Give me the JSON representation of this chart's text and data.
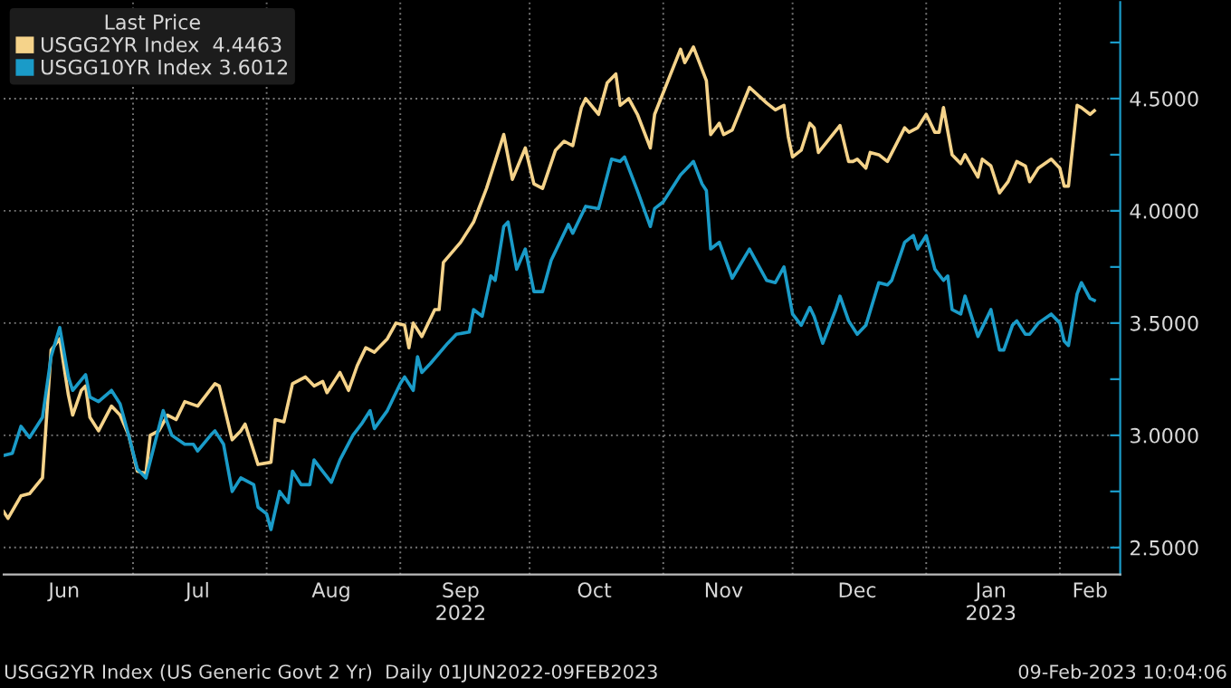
{
  "chart_data": {
    "type": "line",
    "legend_title": "Last Price",
    "legend": "top left",
    "grid": true,
    "xlim": [
      "2022-06-01",
      "2023-02-15"
    ],
    "xticks": [
      {
        "value": "2022-06-15",
        "label": "Jun"
      },
      {
        "value": "2022-07-01",
        "label": null
      },
      {
        "value": "2022-07-16",
        "label": "Jul"
      },
      {
        "value": "2022-08-01",
        "label": null
      },
      {
        "value": "2022-08-16",
        "label": "Aug"
      },
      {
        "value": "2022-09-01",
        "label": null
      },
      {
        "value": "2022-09-15",
        "label": "Sep\n2022"
      },
      {
        "value": "2022-10-01",
        "label": null
      },
      {
        "value": "2022-10-16",
        "label": "Oct"
      },
      {
        "value": "2022-11-01",
        "label": null
      },
      {
        "value": "2022-11-15",
        "label": "Nov"
      },
      {
        "value": "2022-12-01",
        "label": null
      },
      {
        "value": "2022-12-16",
        "label": "Dec"
      },
      {
        "value": "2023-01-01",
        "label": null
      },
      {
        "value": "2023-01-16",
        "label": "Jan\n2023"
      },
      {
        "value": "2023-02-01",
        "label": null
      },
      {
        "value": "2023-02-08",
        "label": "Feb"
      }
    ],
    "ylim": [
      2.38,
      4.93
    ],
    "yticks": [
      {
        "value": 2.5,
        "label": "2.5000"
      },
      {
        "value": 2.75,
        "label": null
      },
      {
        "value": 3.0,
        "label": "3.0000"
      },
      {
        "value": 3.25,
        "label": null
      },
      {
        "value": 3.5,
        "label": "3.5000"
      },
      {
        "value": 3.75,
        "label": null
      },
      {
        "value": 4.0,
        "label": "4.0000"
      },
      {
        "value": 4.25,
        "label": null
      },
      {
        "value": 4.5,
        "label": "4.5000"
      },
      {
        "value": 4.75,
        "label": null
      }
    ],
    "annotations": [
      "USGG2YR Index (US Generic Govt 2 Yr)  Daily 01JUN2022-09FEB2023",
      "09-Feb-2023 10:04:06"
    ],
    "series": [
      {
        "name": "USGG2YR Index  4.4463",
        "color": "#f5d38a",
        "x": [
          "2022-06-01",
          "2022-06-02",
          "2022-06-05",
          "2022-06-07",
          "2022-06-10",
          "2022-06-12",
          "2022-06-14",
          "2022-06-16",
          "2022-06-17",
          "2022-06-19",
          "2022-06-20",
          "2022-06-21",
          "2022-06-23",
          "2022-06-26",
          "2022-06-28",
          "2022-06-30",
          "2022-07-02",
          "2022-07-04",
          "2022-07-05",
          "2022-07-07",
          "2022-07-09",
          "2022-07-11",
          "2022-07-13",
          "2022-07-16",
          "2022-07-20",
          "2022-07-21",
          "2022-07-24",
          "2022-07-26",
          "2022-07-27",
          "2022-07-30",
          "2022-08-02",
          "2022-08-03",
          "2022-08-05",
          "2022-08-07",
          "2022-08-10",
          "2022-08-12",
          "2022-08-14",
          "2022-08-15",
          "2022-08-18",
          "2022-08-20",
          "2022-08-22",
          "2022-08-24",
          "2022-08-26",
          "2022-08-29",
          "2022-08-31",
          "2022-09-02",
          "2022-09-03",
          "2022-09-04",
          "2022-09-06",
          "2022-09-09",
          "2022-09-10",
          "2022-09-11",
          "2022-09-15",
          "2022-09-18",
          "2022-09-21",
          "2022-09-25",
          "2022-09-27",
          "2022-09-30",
          "2022-10-02",
          "2022-10-04",
          "2022-10-07",
          "2022-10-09",
          "2022-10-11",
          "2022-10-13",
          "2022-10-14",
          "2022-10-17",
          "2022-10-19",
          "2022-10-21",
          "2022-10-22",
          "2022-10-24",
          "2022-10-26",
          "2022-10-29",
          "2022-10-30",
          "2022-11-05",
          "2022-11-06",
          "2022-11-08",
          "2022-11-11",
          "2022-11-12",
          "2022-11-14",
          "2022-11-15",
          "2022-11-17",
          "2022-11-21",
          "2022-11-25",
          "2022-11-27",
          "2022-11-29",
          "2022-11-30",
          "2022-12-01",
          "2022-12-03",
          "2022-12-05",
          "2022-12-06",
          "2022-12-07",
          "2022-12-12",
          "2022-12-14",
          "2022-12-15",
          "2022-12-16",
          "2022-12-18",
          "2022-12-19",
          "2022-12-21",
          "2022-12-23",
          "2022-12-27",
          "2022-12-28",
          "2022-12-30",
          "2023-01-01",
          "2023-01-03",
          "2023-01-04",
          "2023-01-05",
          "2023-01-07",
          "2023-01-09",
          "2023-01-10",
          "2023-01-13",
          "2023-01-14",
          "2023-01-16",
          "2023-01-18",
          "2023-01-20",
          "2023-01-22",
          "2023-01-24",
          "2023-01-25",
          "2023-01-27",
          "2023-01-30",
          "2023-02-01",
          "2023-02-02",
          "2023-02-03",
          "2023-02-05",
          "2023-02-06",
          "2023-02-08",
          "2023-02-09"
        ],
        "values": [
          2.66,
          2.63,
          2.73,
          2.74,
          2.81,
          3.38,
          3.43,
          3.18,
          3.09,
          3.2,
          3.22,
          3.08,
          3.02,
          3.13,
          3.09,
          3.0,
          2.84,
          2.83,
          3.0,
          3.02,
          3.09,
          3.07,
          3.15,
          3.13,
          3.23,
          3.22,
          2.98,
          3.02,
          3.05,
          2.87,
          2.88,
          3.07,
          3.06,
          3.23,
          3.26,
          3.22,
          3.24,
          3.19,
          3.28,
          3.2,
          3.31,
          3.39,
          3.37,
          3.43,
          3.5,
          3.49,
          3.39,
          3.5,
          3.44,
          3.56,
          3.56,
          3.77,
          3.86,
          3.95,
          4.1,
          4.34,
          4.14,
          4.28,
          4.12,
          4.1,
          4.27,
          4.31,
          4.29,
          4.46,
          4.5,
          4.43,
          4.57,
          4.61,
          4.47,
          4.5,
          4.43,
          4.28,
          4.43,
          4.72,
          4.66,
          4.73,
          4.58,
          4.34,
          4.39,
          4.34,
          4.36,
          4.55,
          4.48,
          4.45,
          4.47,
          4.33,
          4.24,
          4.27,
          4.39,
          4.37,
          4.26,
          4.38,
          4.22,
          4.22,
          4.23,
          4.19,
          4.26,
          4.25,
          4.22,
          4.37,
          4.35,
          4.37,
          4.43,
          4.35,
          4.35,
          4.46,
          4.25,
          4.21,
          4.25,
          4.15,
          4.23,
          4.2,
          4.08,
          4.13,
          4.22,
          4.2,
          4.13,
          4.19,
          4.23,
          4.19,
          4.11,
          4.11,
          4.47,
          4.46,
          4.43,
          4.4463
        ]
      },
      {
        "name": "USGG10YR Index 3.6012",
        "color": "#1a9bc8",
        "x": [
          "2022-06-01",
          "2022-06-03",
          "2022-06-05",
          "2022-06-07",
          "2022-06-09",
          "2022-06-10",
          "2022-06-12",
          "2022-06-14",
          "2022-06-16",
          "2022-06-17",
          "2022-06-20",
          "2022-06-21",
          "2022-06-23",
          "2022-06-26",
          "2022-06-28",
          "2022-06-30",
          "2022-07-02",
          "2022-07-04",
          "2022-07-06",
          "2022-07-08",
          "2022-07-10",
          "2022-07-13",
          "2022-07-15",
          "2022-07-16",
          "2022-07-19",
          "2022-07-20",
          "2022-07-22",
          "2022-07-24",
          "2022-07-26",
          "2022-07-29",
          "2022-07-30",
          "2022-08-01",
          "2022-08-02",
          "2022-08-04",
          "2022-08-06",
          "2022-08-07",
          "2022-08-09",
          "2022-08-11",
          "2022-08-12",
          "2022-08-14",
          "2022-08-16",
          "2022-08-18",
          "2022-08-21",
          "2022-08-23",
          "2022-08-25",
          "2022-08-26",
          "2022-08-29",
          "2022-09-01",
          "2022-09-02",
          "2022-09-04",
          "2022-09-05",
          "2022-09-06",
          "2022-09-08",
          "2022-09-12",
          "2022-09-14",
          "2022-09-17",
          "2022-09-18",
          "2022-09-20",
          "2022-09-22",
          "2022-09-23",
          "2022-09-25",
          "2022-09-26",
          "2022-09-28",
          "2022-09-30",
          "2022-10-02",
          "2022-10-04",
          "2022-10-06",
          "2022-10-10",
          "2022-10-11",
          "2022-10-14",
          "2022-10-17",
          "2022-10-20",
          "2022-10-22",
          "2022-10-23",
          "2022-10-26",
          "2022-10-29",
          "2022-10-30",
          "2022-11-01",
          "2022-11-05",
          "2022-11-08",
          "2022-11-10",
          "2022-11-11",
          "2022-11-12",
          "2022-11-14",
          "2022-11-17",
          "2022-11-21",
          "2022-11-25",
          "2022-11-27",
          "2022-11-29",
          "2022-12-01",
          "2022-12-03",
          "2022-12-05",
          "2022-12-06",
          "2022-12-08",
          "2022-12-11",
          "2022-12-12",
          "2022-12-14",
          "2022-12-16",
          "2022-12-18",
          "2022-12-21",
          "2022-12-23",
          "2022-12-24",
          "2022-12-27",
          "2022-12-29",
          "2022-12-30",
          "2023-01-01",
          "2023-01-03",
          "2023-01-05",
          "2023-01-06",
          "2023-01-07",
          "2023-01-09",
          "2023-01-10",
          "2023-01-13",
          "2023-01-16",
          "2023-01-18",
          "2023-01-19",
          "2023-01-21",
          "2023-01-22",
          "2023-01-24",
          "2023-01-25",
          "2023-01-27",
          "2023-01-30",
          "2023-02-01",
          "2023-02-02",
          "2023-02-03",
          "2023-02-05",
          "2023-02-06",
          "2023-02-08",
          "2023-02-09"
        ],
        "values": [
          2.91,
          2.92,
          3.04,
          2.99,
          3.05,
          3.08,
          3.35,
          3.48,
          3.26,
          3.2,
          3.27,
          3.17,
          3.15,
          3.2,
          3.14,
          3.0,
          2.85,
          2.81,
          2.96,
          3.11,
          3.0,
          2.96,
          2.96,
          2.93,
          3.0,
          3.02,
          2.96,
          2.75,
          2.81,
          2.78,
          2.68,
          2.65,
          2.58,
          2.75,
          2.7,
          2.84,
          2.78,
          2.78,
          2.89,
          2.84,
          2.79,
          2.89,
          3.0,
          3.05,
          3.11,
          3.03,
          3.11,
          3.23,
          3.26,
          3.2,
          3.35,
          3.28,
          3.32,
          3.41,
          3.45,
          3.46,
          3.56,
          3.53,
          3.71,
          3.69,
          3.93,
          3.95,
          3.74,
          3.83,
          3.64,
          3.64,
          3.78,
          3.94,
          3.9,
          4.02,
          4.01,
          4.23,
          4.22,
          4.24,
          4.09,
          3.93,
          4.01,
          4.04,
          4.16,
          4.22,
          4.12,
          4.09,
          3.83,
          3.86,
          3.7,
          3.83,
          3.69,
          3.68,
          3.75,
          3.54,
          3.49,
          3.57,
          3.53,
          3.41,
          3.56,
          3.62,
          3.51,
          3.45,
          3.49,
          3.68,
          3.67,
          3.69,
          3.86,
          3.89,
          3.83,
          3.89,
          3.74,
          3.69,
          3.71,
          3.56,
          3.54,
          3.62,
          3.44,
          3.56,
          3.38,
          3.38,
          3.49,
          3.51,
          3.45,
          3.45,
          3.5,
          3.54,
          3.5,
          3.42,
          3.4,
          3.63,
          3.68,
          3.61,
          3.6012
        ]
      }
    ]
  }
}
